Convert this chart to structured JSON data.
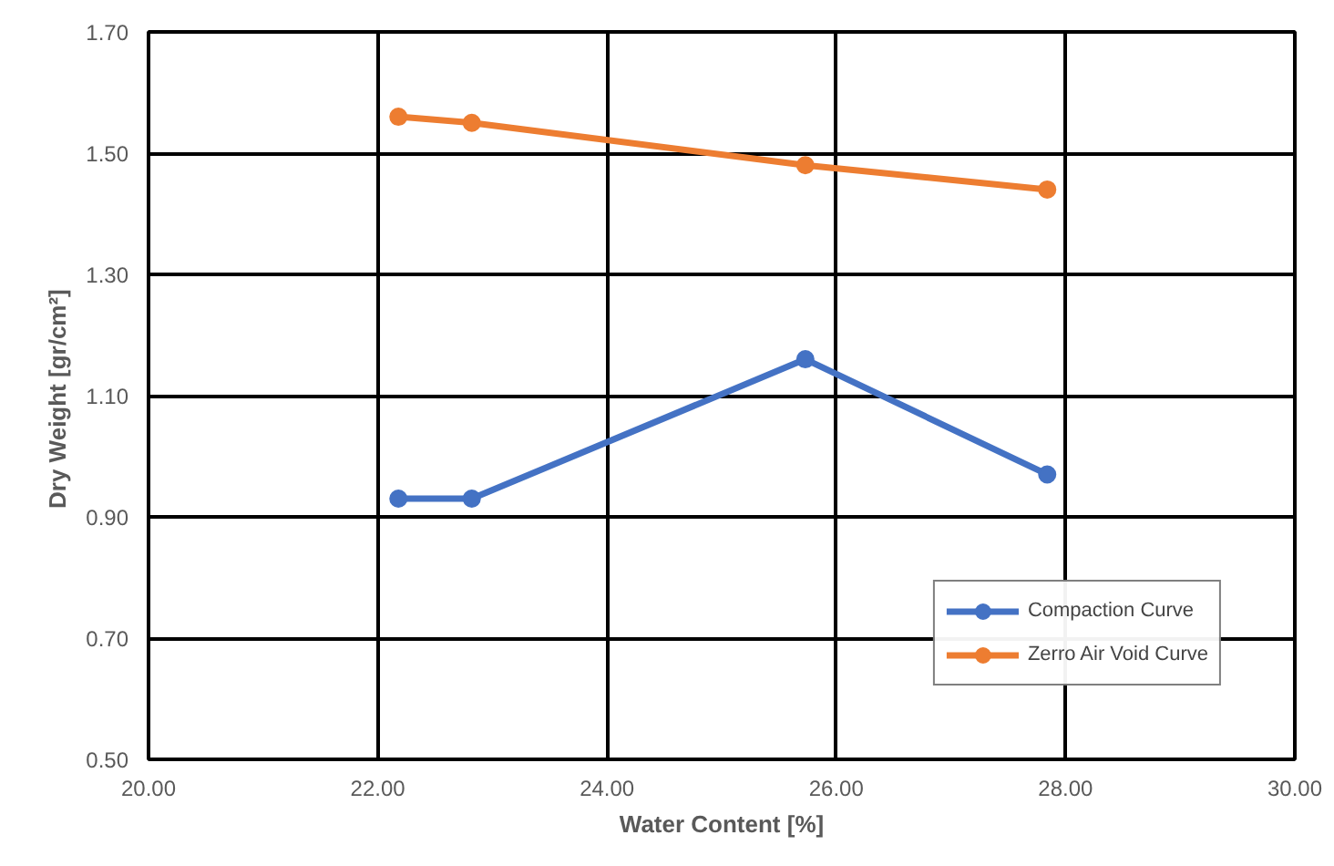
{
  "chart_data": {
    "type": "line",
    "xlabel": "Water Content [%]",
    "ylabel": "Dry Weight  [gr/cm²]",
    "xlim": [
      20,
      30
    ],
    "xticks": [
      {
        "value": 20,
        "label": "20.00"
      },
      {
        "value": 22,
        "label": "22.00"
      },
      {
        "value": 24,
        "label": "24.00"
      },
      {
        "value": 26,
        "label": "26.00"
      },
      {
        "value": 28,
        "label": "28.00"
      },
      {
        "value": 30,
        "label": "30.00"
      }
    ],
    "ylim": [
      0.5,
      1.7
    ],
    "yticks": [
      {
        "value": 0.5,
        "label": "0.50"
      },
      {
        "value": 0.7,
        "label": "0.70"
      },
      {
        "value": 0.9,
        "label": "0.90"
      },
      {
        "value": 1.1,
        "label": "1.10"
      },
      {
        "value": 1.3,
        "label": "1.30"
      },
      {
        "value": 1.5,
        "label": "1.50"
      },
      {
        "value": 1.7,
        "label": "1.70"
      }
    ],
    "grid": true,
    "legend": "bottom right",
    "marker": "circle",
    "line_style": "solid",
    "x": [
      22.18,
      22.82,
      25.73,
      27.84
    ],
    "series": [
      {
        "name": "Compaction Curve",
        "color": "#4472c4",
        "values": [
          0.93,
          0.93,
          1.16,
          0.97
        ]
      },
      {
        "name": "Zerro Air Void Curve",
        "color": "#ed7d31",
        "values": [
          1.56,
          1.55,
          1.48,
          1.44
        ]
      }
    ]
  }
}
